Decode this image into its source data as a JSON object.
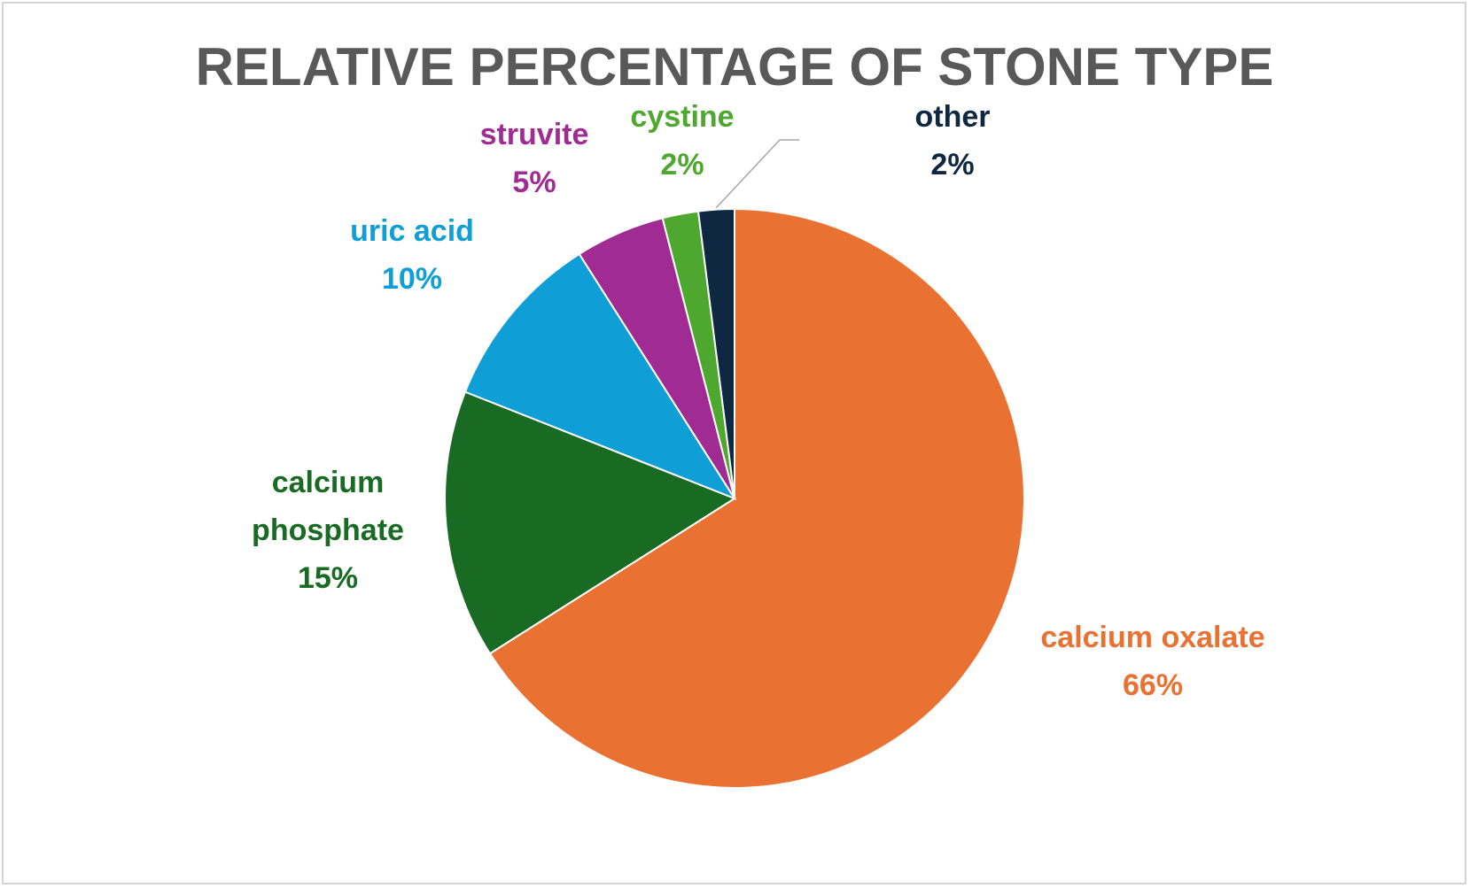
{
  "chart_data": {
    "type": "pie",
    "title": "RELATIVE PERCENTAGE OF  STONE TYPE",
    "start_angle_deg": 0,
    "direction": "clockwise",
    "legend": "none",
    "slices": [
      {
        "label_lines": [
          "calcium oxalate"
        ],
        "pct_label": "66%",
        "value": 66,
        "color": "#E97132"
      },
      {
        "label_lines": [
          "calcium",
          "phosphate"
        ],
        "pct_label": "15%",
        "value": 15,
        "color": "#196B24"
      },
      {
        "label_lines": [
          "uric acid"
        ],
        "pct_label": "10%",
        "value": 10,
        "color": "#0F9ED5"
      },
      {
        "label_lines": [
          "struvite"
        ],
        "pct_label": "5%",
        "value": 5,
        "color": "#A02B93"
      },
      {
        "label_lines": [
          "cystine"
        ],
        "pct_label": "2%",
        "value": 2,
        "color": "#4EA72E"
      },
      {
        "label_lines": [
          "other"
        ],
        "pct_label": "2%",
        "value": 2,
        "color": "#0E2841"
      }
    ]
  }
}
